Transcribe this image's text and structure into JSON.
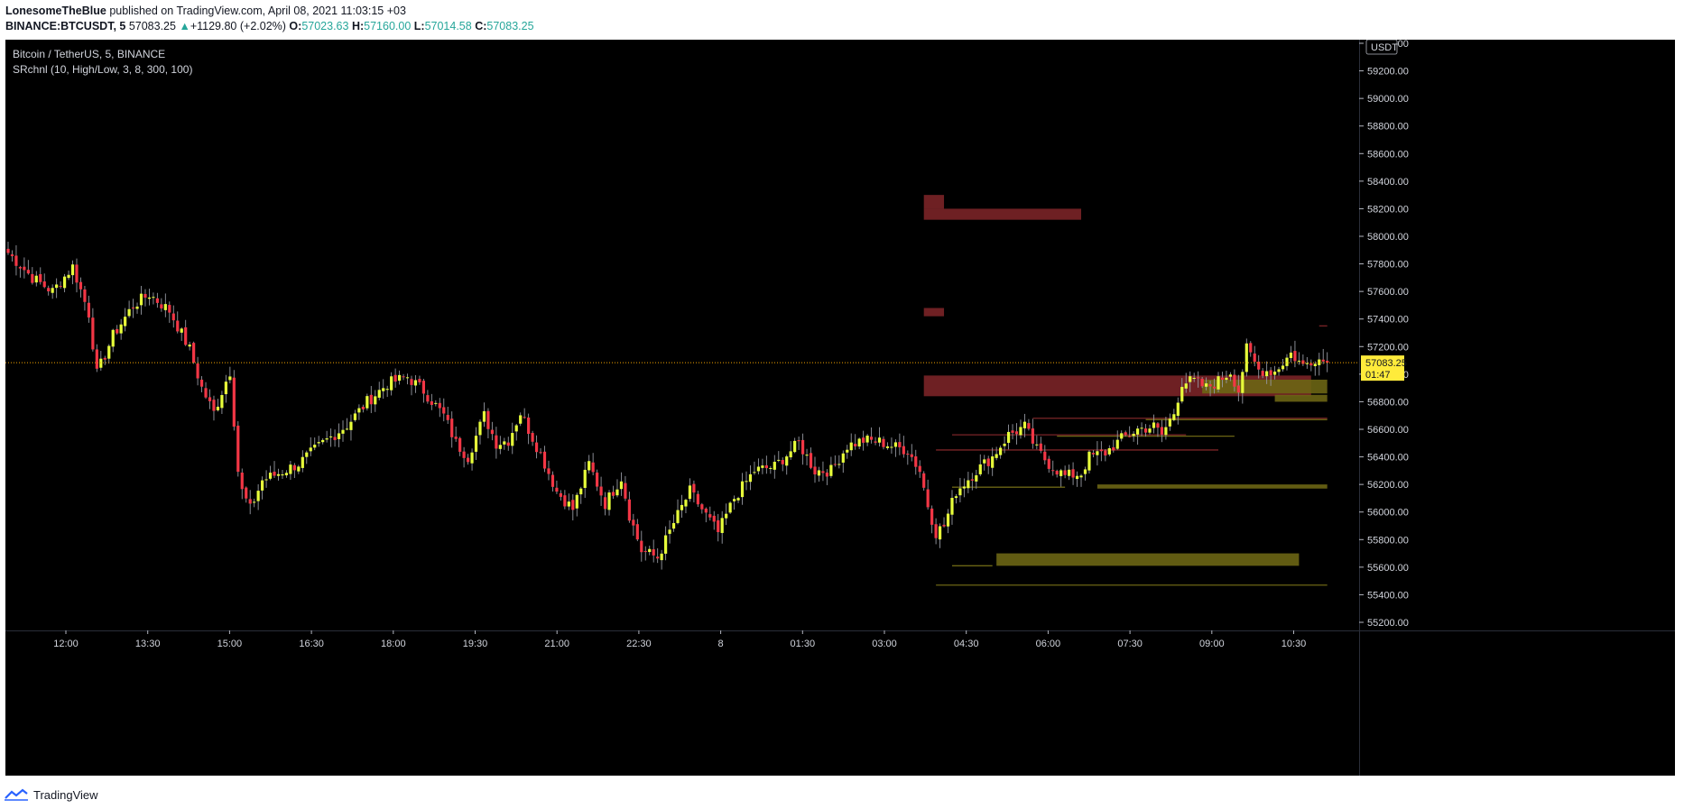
{
  "header": {
    "author": "LonesomeTheBlue",
    "published_text": "published on TradingView.com, April 08, 2021 11:03:15 +03",
    "symbol": "BINANCE:BTCUSDT, 5",
    "last_price": "57083.25",
    "change_arrow": "▲",
    "change_text": "+1129.80 (+2.02%)",
    "o_label": "O:",
    "o_value": "57023.63",
    "h_label": "H:",
    "h_value": "57160.00",
    "l_label": "L:",
    "l_value": "57014.58",
    "c_label": "C:",
    "c_value": "57083.25"
  },
  "legend": {
    "title": "Bitcoin / TetherUS, 5, BINANCE",
    "indicator": "SRchnl (10, High/Low, 3, 8, 300, 100)"
  },
  "footer": {
    "brand": "TradingView"
  },
  "colors": {
    "background": "#000000",
    "candle_up": "#e8ff3a",
    "candle_down": "#f23645",
    "resistance_zone": "#7a2427",
    "support_zone": "#6b6514",
    "price_line": "#f7a600",
    "price_label_bg": "#ffeb3b"
  },
  "chart_data": {
    "type": "candlestick",
    "title": "Bitcoin / TetherUS, 5, BINANCE",
    "price_axis_unit": "USDT",
    "y_ticks": [
      "59400.00",
      "59200.00",
      "59000.00",
      "58800.00",
      "58600.00",
      "58400.00",
      "58200.00",
      "58000.00",
      "57800.00",
      "57600.00",
      "57400.00",
      "57200.00",
      "57000.00",
      "56800.00",
      "56600.00",
      "56400.00",
      "56200.00",
      "56000.00",
      "55800.00",
      "55600.00",
      "55400.00",
      "55200.00"
    ],
    "x_ticks": [
      "12:00",
      "13:30",
      "15:00",
      "16:30",
      "18:00",
      "19:30",
      "21:00",
      "22:30",
      "8",
      "01:30",
      "03:00",
      "04:30",
      "06:00",
      "07:30",
      "09:00",
      "10:30"
    ],
    "ylim": [
      55100,
      59400
    ],
    "current_price": "57083.25",
    "countdown": "01:47",
    "close_path": [
      [
        0,
        57880
      ],
      [
        6,
        57700
      ],
      [
        11,
        57600
      ],
      [
        16,
        57780
      ],
      [
        20,
        57440
      ],
      [
        22,
        57000
      ],
      [
        26,
        57280
      ],
      [
        31,
        57500
      ],
      [
        35,
        57580
      ],
      [
        40,
        57460
      ],
      [
        45,
        57180
      ],
      [
        48,
        56900
      ],
      [
        51,
        56720
      ],
      [
        54,
        56950
      ],
      [
        55,
        57020
      ],
      [
        57,
        56300
      ],
      [
        58,
        56150
      ],
      [
        60,
        56020
      ],
      [
        63,
        56230
      ],
      [
        67,
        56280
      ],
      [
        72,
        56350
      ],
      [
        78,
        56500
      ],
      [
        84,
        56630
      ],
      [
        89,
        56800
      ],
      [
        94,
        56930
      ],
      [
        99,
        56980
      ],
      [
        103,
        56880
      ],
      [
        108,
        56700
      ],
      [
        111,
        56500
      ],
      [
        114,
        56400
      ],
      [
        118,
        56700
      ],
      [
        121,
        56500
      ],
      [
        124,
        56520
      ],
      [
        127,
        56720
      ],
      [
        132,
        56420
      ],
      [
        136,
        56150
      ],
      [
        140,
        56020
      ],
      [
        144,
        56350
      ],
      [
        148,
        56060
      ],
      [
        152,
        56250
      ],
      [
        154,
        55980
      ],
      [
        157,
        55720
      ],
      [
        161,
        55670
      ],
      [
        165,
        55920
      ],
      [
        169,
        56150
      ],
      [
        172,
        56020
      ],
      [
        176,
        55850
      ],
      [
        180,
        56100
      ],
      [
        185,
        56300
      ],
      [
        190,
        56330
      ],
      [
        196,
        56500
      ],
      [
        200,
        56300
      ],
      [
        204,
        56300
      ],
      [
        208,
        56480
      ],
      [
        212,
        56520
      ],
      [
        216,
        56510
      ],
      [
        220,
        56470
      ],
      [
        223,
        56450
      ],
      [
        226,
        56300
      ],
      [
        228,
        56050
      ],
      [
        230,
        55850
      ],
      [
        232,
        55900
      ],
      [
        235,
        56150
      ],
      [
        240,
        56300
      ],
      [
        244,
        56400
      ],
      [
        248,
        56560
      ],
      [
        252,
        56620
      ],
      [
        255,
        56450
      ],
      [
        258,
        56350
      ],
      [
        262,
        56260
      ],
      [
        266,
        56280
      ],
      [
        268,
        56400
      ],
      [
        272,
        56430
      ],
      [
        276,
        56530
      ],
      [
        280,
        56600
      ],
      [
        284,
        56620
      ],
      [
        286,
        56560
      ],
      [
        289,
        56720
      ],
      [
        291,
        56940
      ],
      [
        294,
        56950
      ],
      [
        297,
        56900
      ],
      [
        300,
        56950
      ],
      [
        303,
        57020
      ],
      [
        305,
        56880
      ],
      [
        307,
        57180
      ],
      [
        310,
        57030
      ],
      [
        314,
        57020
      ],
      [
        318,
        57150
      ],
      [
        321,
        57060
      ],
      [
        324,
        57120
      ],
      [
        327,
        57083
      ]
    ],
    "resistance_zones": [
      {
        "from_bar": 227,
        "to_bar": 232,
        "low": 58200,
        "high": 58300
      },
      {
        "from_bar": 227,
        "to_bar": 266,
        "low": 58120,
        "high": 58200
      },
      {
        "from_bar": 227,
        "to_bar": 232,
        "low": 57420,
        "high": 57480
      },
      {
        "from_bar": 227,
        "to_bar": 323,
        "low": 56840,
        "high": 56990
      }
    ],
    "support_zones": [
      {
        "from_bar": 296,
        "to_bar": 327,
        "low": 56860,
        "high": 56960
      },
      {
        "from_bar": 314,
        "to_bar": 327,
        "low": 56800,
        "high": 56850
      },
      {
        "from_bar": 270,
        "to_bar": 327,
        "low": 56170,
        "high": 56200
      },
      {
        "from_bar": 245,
        "to_bar": 320,
        "low": 55610,
        "high": 55700
      }
    ]
  }
}
